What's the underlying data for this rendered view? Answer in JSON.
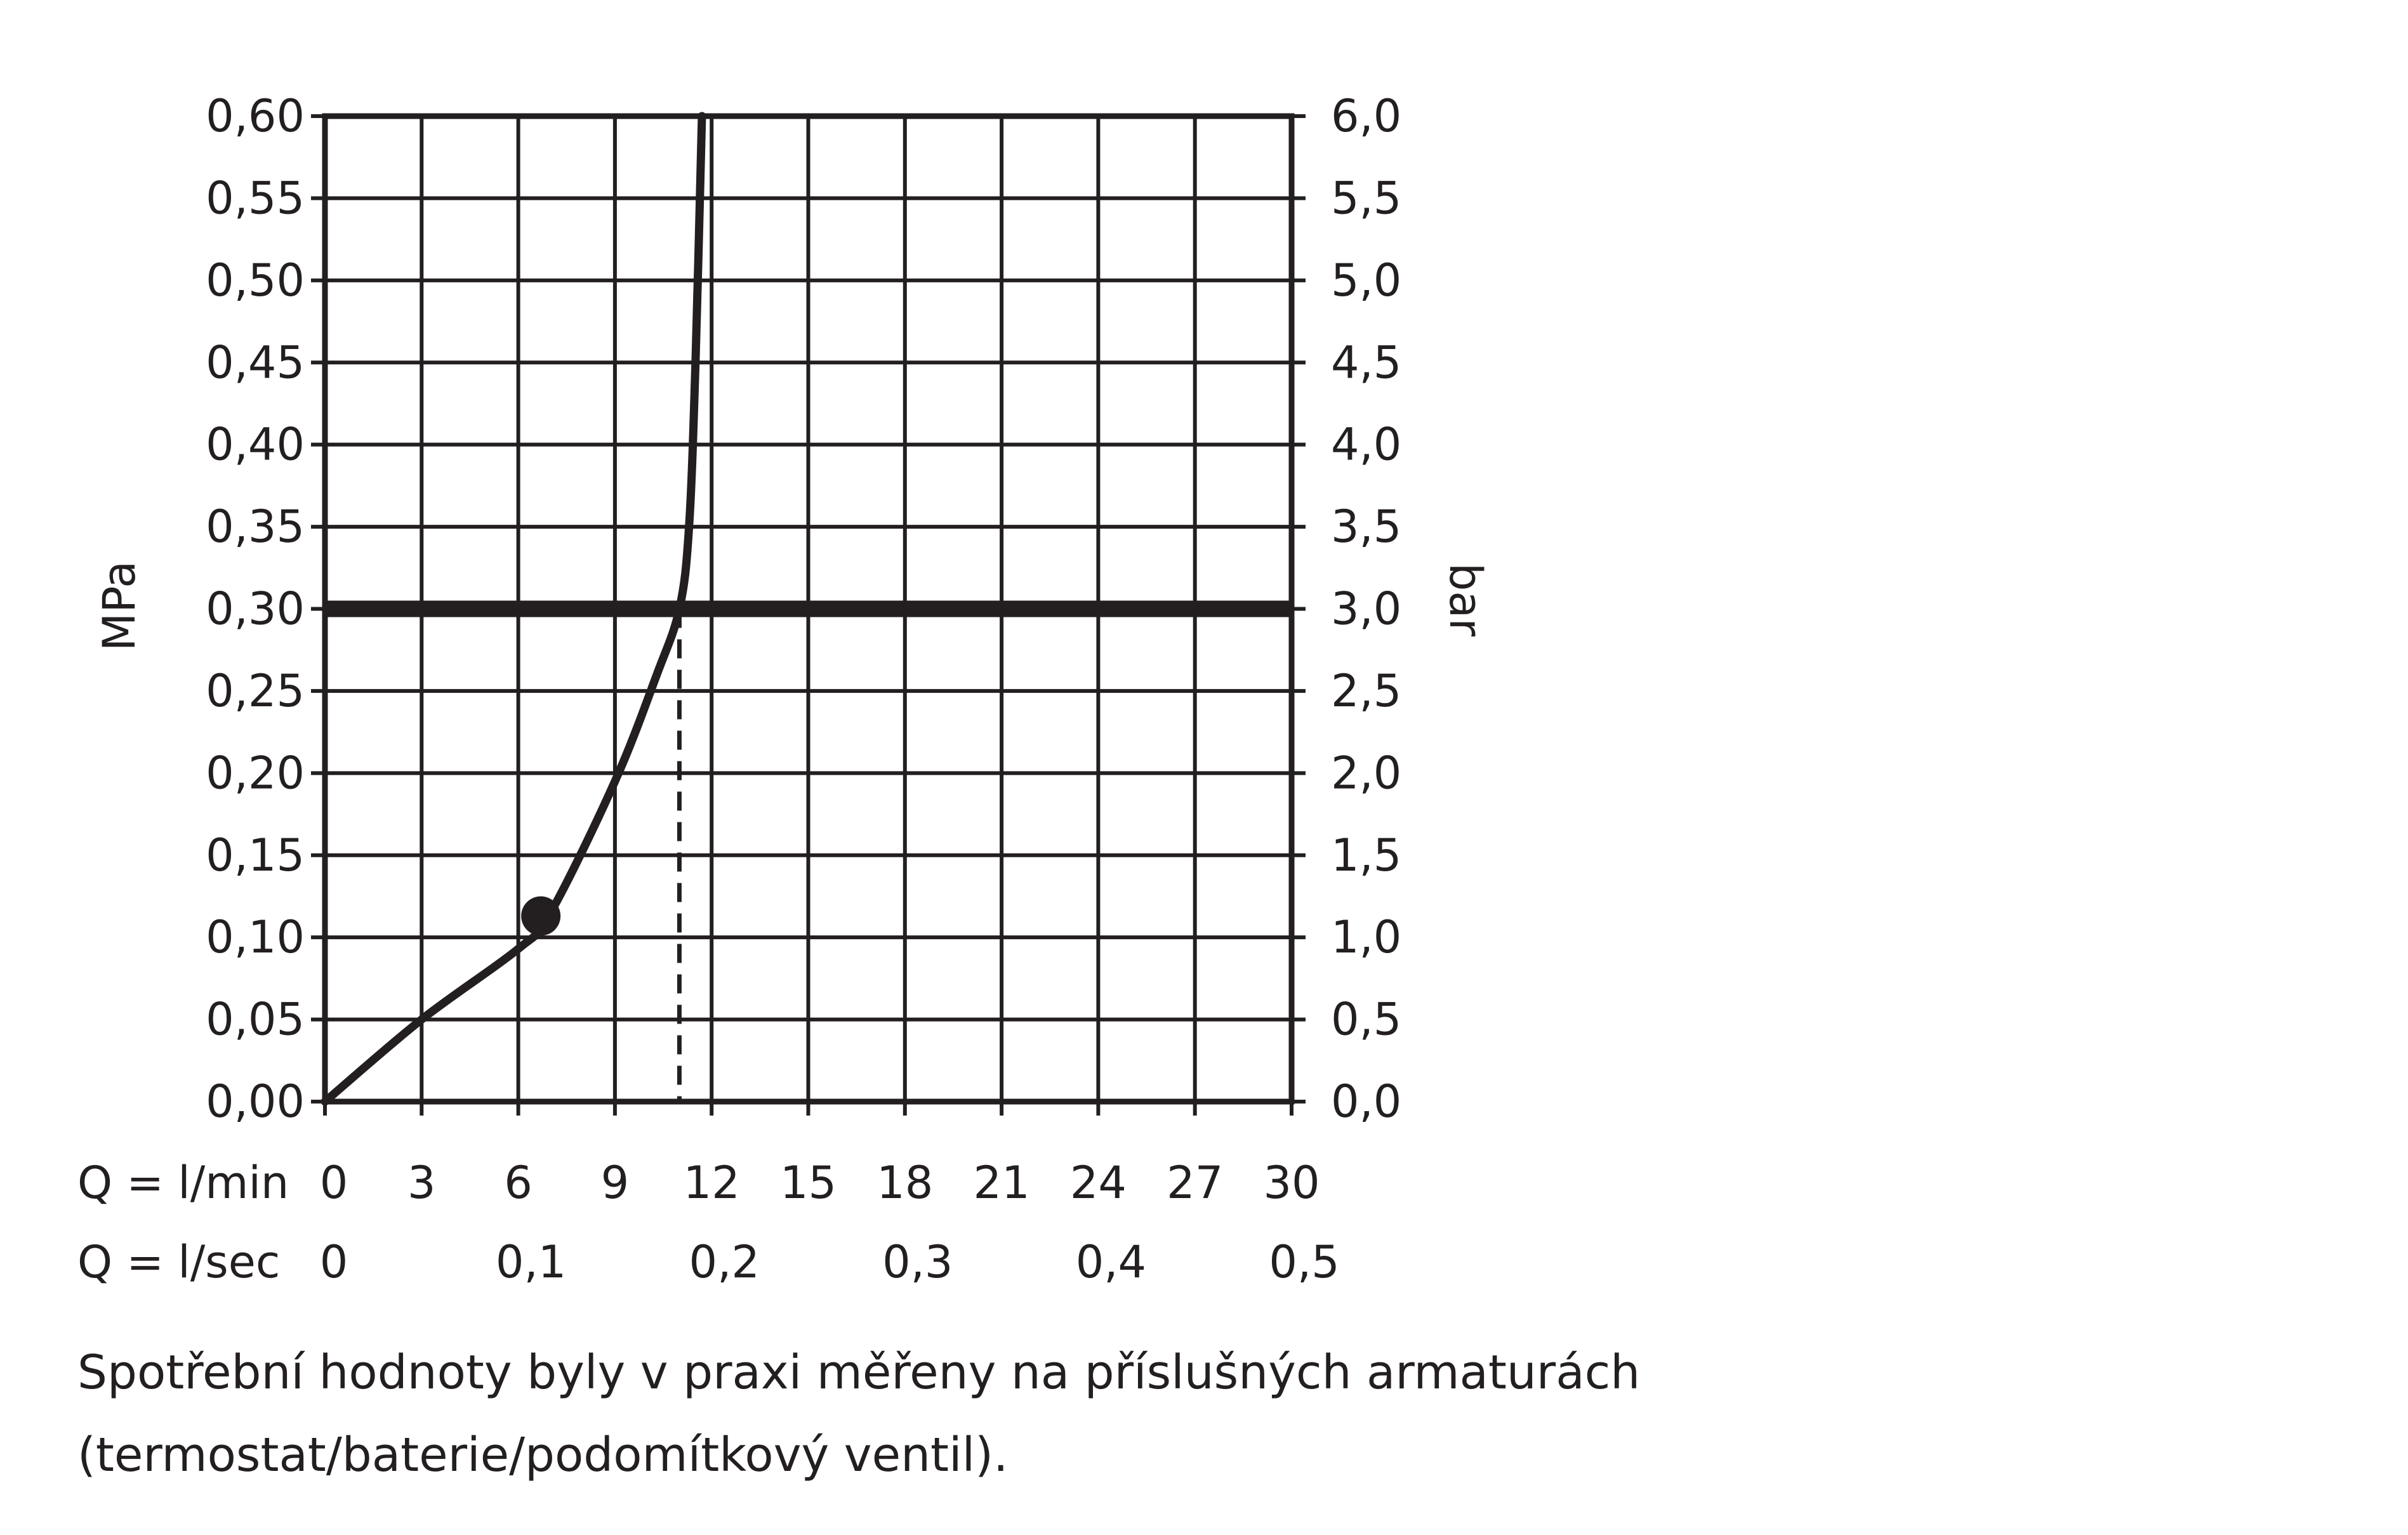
{
  "chart_data": {
    "type": "line",
    "title": "",
    "ylabel_left": "MPa",
    "ylabel_right": "bar",
    "y_left_ticks": [
      "0,00",
      "0,05",
      "0,10",
      "0,15",
      "0,20",
      "0,25",
      "0,30",
      "0,35",
      "0,40",
      "0,45",
      "0,50",
      "0,55",
      "0,60"
    ],
    "y_right_ticks": [
      "0,0",
      "0,5",
      "1,0",
      "1,5",
      "2,0",
      "2,5",
      "3,0",
      "3,5",
      "4,0",
      "4,5",
      "5,0",
      "5,5",
      "6,0"
    ],
    "ylim": [
      0,
      0.6
    ],
    "xlim": [
      0,
      30
    ],
    "x_min_label": "Q = l/min",
    "x_min_ticks": [
      "0",
      "3",
      "6",
      "9",
      "12",
      "15",
      "18",
      "21",
      "24",
      "27",
      "30"
    ],
    "x_sec_label": "Q = l/sec",
    "x_sec_ticks": [
      {
        "x": 0,
        "label": "0"
      },
      {
        "x": 6,
        "label": "0,1"
      },
      {
        "x": 12,
        "label": "0,2"
      },
      {
        "x": 18,
        "label": "0,3"
      },
      {
        "x": 24,
        "label": "0,4"
      },
      {
        "x": 30,
        "label": "0,5"
      }
    ],
    "grid": true,
    "series": [
      {
        "x": [
          0,
          3,
          6,
          7,
          9,
          10.3,
          11,
          11.3,
          11.5,
          11.7
        ],
        "y": [
          0,
          0.05,
          0.093,
          0.115,
          0.195,
          0.26,
          0.3,
          0.35,
          0.45,
          0.6
        ]
      }
    ],
    "marker": {
      "x": 6.7,
      "y": 0.113
    },
    "reference_line": {
      "y": 0.3
    },
    "drop_line": {
      "x": 11.0,
      "y": 0.3
    },
    "colors": {
      "ink": "#231f20"
    }
  },
  "note": "Spotřební hodnoty byly v praxi měřeny na příslušných armaturách (termostat/baterie/podomítkový ventil)."
}
